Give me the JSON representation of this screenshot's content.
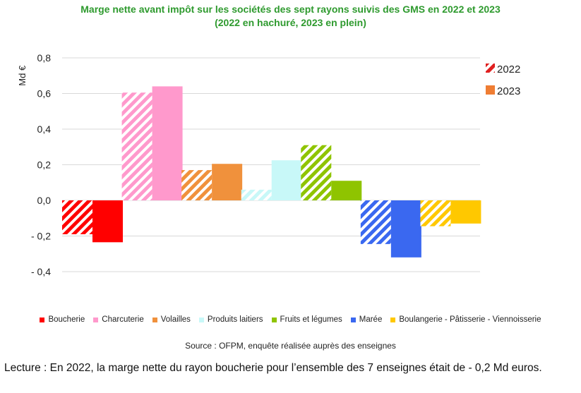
{
  "title": {
    "line1": "Marge nette avant impôt sur les sociétés des sept rayons suivis des GMS en 2022 et 2023",
    "line2": "(2022 en hachuré, 2023 en plein)"
  },
  "source": "Source : OFPM, enquête réalisée auprès des enseignes",
  "lecture": "Lecture : En 2022, la marge nette du rayon boucherie pour l’ensemble des 7 enseignes était de - 0,2 Md euros.",
  "chart_data": {
    "type": "bar",
    "title": "Marge nette avant impôt sur les sociétés des sept rayons suivis des GMS en 2022 et 2023",
    "ylabel": "Md €",
    "ylim": [
      -0.4,
      0.8
    ],
    "yticks": [
      0.8,
      0.6,
      0.4,
      0.2,
      0.0,
      -0.2,
      -0.4
    ],
    "ytick_labels": [
      "0,8",
      "0,6",
      "0,4",
      "0,2",
      "0,0",
      "- 0,2",
      "- 0,4"
    ],
    "grid": true,
    "legend_position": "top-right",
    "categories": [
      "Boucherie",
      "Charcuterie",
      "Volailles",
      "Produits laitiers",
      "Fruits et légumes",
      "Marée",
      "Boulangerie - Pâtisserie - Viennoisserie"
    ],
    "colors": [
      "#ff0000",
      "#ff99cc",
      "#f0913c",
      "#c8f8f8",
      "#8fc400",
      "#3a68f0",
      "#ffc800"
    ],
    "series": [
      {
        "name": "2022",
        "style": "hatched",
        "legend_color": "#e02020",
        "values": [
          -0.19,
          0.605,
          0.17,
          0.06,
          0.31,
          -0.245,
          -0.145
        ]
      },
      {
        "name": "2023",
        "style": "solid",
        "legend_color": "#ef7d33",
        "values": [
          -0.235,
          0.64,
          0.205,
          0.225,
          0.11,
          -0.32,
          -0.13
        ]
      }
    ]
  }
}
